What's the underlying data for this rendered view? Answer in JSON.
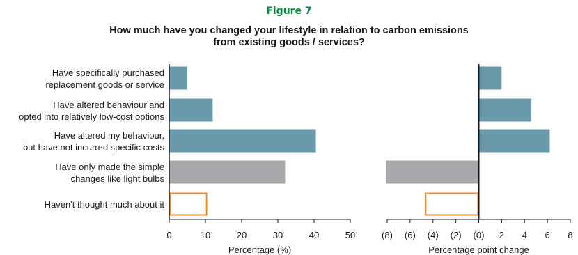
{
  "figure_label": "Figure 7",
  "title_lines": [
    "How much have you changed your lifestyle in relation to carbon emissions",
    "from existing goods / services?"
  ],
  "colors": {
    "blue": "#6a99ab",
    "gray": "#a7a8ab",
    "orange": "#ee8a2e",
    "axis": "#1a1a1a",
    "heading_green": "#008a3e"
  },
  "chart_data": [
    {
      "type": "bar",
      "orientation": "horizontal",
      "categories": [
        [
          "Have specifically purchased",
          "replacement goods or service"
        ],
        [
          "Have altered behaviour and",
          "opted into relatively low-cost options"
        ],
        [
          "Have altered my behaviour,",
          "but have not incurred specific costs"
        ],
        [
          "Have only made the simple",
          "changes like light bulbs"
        ],
        [
          "Haven't thought much about it"
        ]
      ],
      "values": [
        5,
        12,
        40.5,
        32,
        10.5
      ],
      "bar_styles": [
        "filled-blue",
        "filled-blue",
        "filled-blue",
        "filled-gray",
        "outline-orange"
      ],
      "xlabel": "Percentage (%)",
      "xlim": [
        0,
        50
      ],
      "xticks": [
        0,
        10,
        20,
        30,
        40,
        50
      ],
      "xtick_labels": [
        "0",
        "10",
        "20",
        "30",
        "40",
        "50"
      ],
      "grid": false
    },
    {
      "type": "bar",
      "orientation": "horizontal",
      "values": [
        2,
        4.6,
        6.2,
        -8.1,
        -4.7
      ],
      "bar_styles": [
        "filled-blue",
        "filled-blue",
        "filled-blue",
        "filled-gray",
        "outline-orange"
      ],
      "xlabel": "Percentage point change",
      "xlim": [
        -8,
        8
      ],
      "xticks": [
        -8,
        -6,
        -4,
        -2,
        0,
        2,
        4,
        6,
        8
      ],
      "xtick_labels": [
        "(8)",
        "(6)",
        "(4)",
        "(2)",
        "(0)",
        "2",
        "4",
        "6",
        "8"
      ],
      "grid": false
    }
  ]
}
